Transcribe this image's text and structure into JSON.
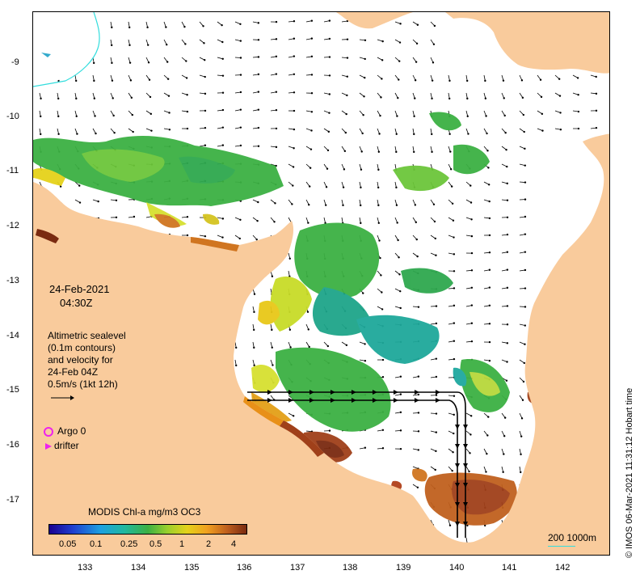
{
  "map": {
    "date": "24-Feb-2021",
    "time": "04:30Z",
    "info_lines": [
      "Altimetric sealevel",
      "(0.1m contours)",
      "and velocity for",
      "24-Feb 04Z",
      "0.5m/s (1kt 12h)"
    ],
    "argo_label": "Argo 0",
    "drifter_label": "drifter",
    "colorbar_title": "MODIS Chl-a mg/m3 OC3",
    "colorbar_ticks": [
      "0.05",
      "0.1",
      "0.25",
      "0.5",
      "1",
      "2",
      "4"
    ],
    "scale_label": "200  1000m",
    "credit": "© IMOS 06-Mar-2021 11:31:12 Hobart time",
    "x_ticks": [
      "133",
      "134",
      "135",
      "136",
      "137",
      "138",
      "139",
      "140",
      "141",
      "142"
    ],
    "y_ticks": [
      "-9",
      "-10",
      "-11",
      "-12",
      "-13",
      "-14",
      "-15",
      "-16",
      "-17"
    ],
    "colors": {
      "land": "#f9cb9c",
      "argo": "#ee22ee",
      "drifter": "#ee22ee",
      "contour": "#33dddd"
    }
  }
}
